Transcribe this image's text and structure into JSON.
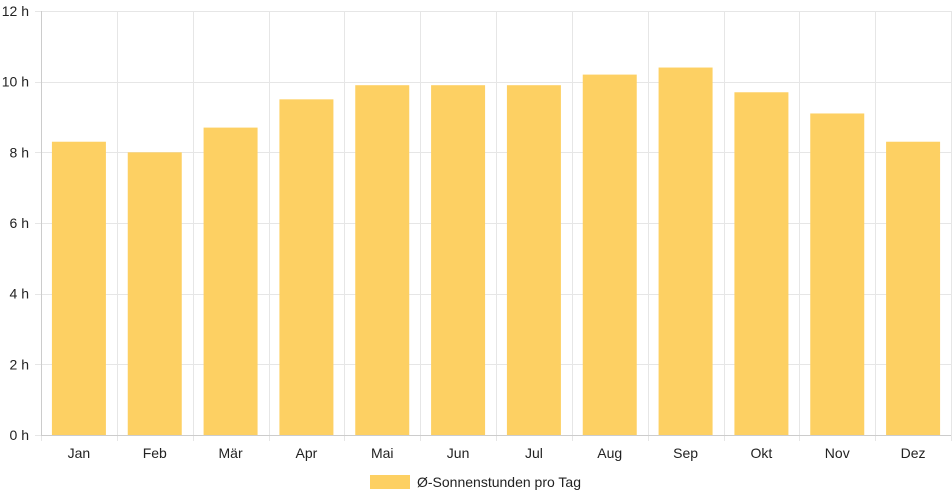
{
  "chart_data": {
    "type": "bar",
    "categories": [
      "Jan",
      "Feb",
      "Mär",
      "Apr",
      "Mai",
      "Jun",
      "Jul",
      "Aug",
      "Sep",
      "Okt",
      "Nov",
      "Dez"
    ],
    "series": [
      {
        "name": "Ø-Sonnenstunden pro Tag",
        "values": [
          8.3,
          8.0,
          8.7,
          9.5,
          9.9,
          9.9,
          9.9,
          10.2,
          10.4,
          9.7,
          9.1,
          8.3
        ]
      }
    ],
    "title": "",
    "xlabel": "",
    "ylabel": "",
    "ylim": [
      0,
      12
    ],
    "yticks": [
      0,
      2,
      4,
      6,
      8,
      10,
      12
    ],
    "ytick_labels": [
      "0 h",
      "2 h",
      "4 h",
      "6 h",
      "8 h",
      "10 h",
      "12 h"
    ],
    "grid": true,
    "legend_position": "bottom",
    "bar_color": "#fdd063"
  }
}
